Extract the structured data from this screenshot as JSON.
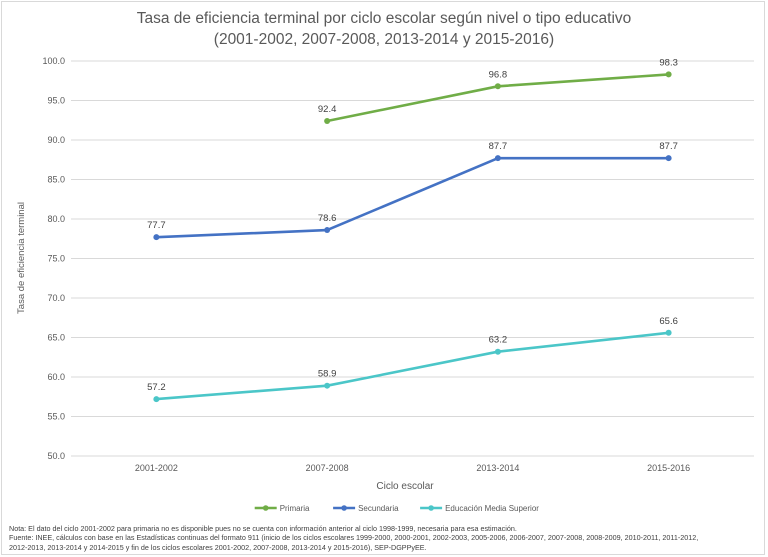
{
  "chart_data": {
    "type": "line",
    "title_line1": "Tasa de eficiencia terminal por ciclo escolar según nivel o tipo educativo",
    "title_line2": "(2001-2002, 2007-2008, 2013-2014 y 2015-2016)",
    "xlabel": "Ciclo escolar",
    "ylabel": "Tasa de eficiencia terminal",
    "categories": [
      "2001-2002",
      "2007-2008",
      "2013-2014",
      "2015-2016"
    ],
    "ylim": [
      50.0,
      100.0
    ],
    "yticks": [
      "50.0",
      "55.0",
      "60.0",
      "65.0",
      "70.0",
      "75.0",
      "80.0",
      "85.0",
      "90.0",
      "95.0",
      "100.0"
    ],
    "grid": true,
    "legend_position": "bottom",
    "series": [
      {
        "name": "Primaria",
        "color": "#70ad47",
        "values": [
          null,
          92.4,
          96.8,
          98.3
        ],
        "labels": [
          "",
          "92.4",
          "96.8",
          "98.3"
        ]
      },
      {
        "name": "Secundaria",
        "color": "#4472c4",
        "values": [
          77.7,
          78.6,
          87.7,
          87.7
        ],
        "labels": [
          "77.7",
          "78.6",
          "87.7",
          "87.7"
        ]
      },
      {
        "name": "Educación Media Superior",
        "color": "#4bc6c8",
        "values": [
          57.2,
          58.9,
          63.2,
          65.6
        ],
        "labels": [
          "57.2",
          "58.9",
          "63.2",
          "65.6"
        ]
      }
    ]
  },
  "notes": {
    "line1": "Nota: El dato del ciclo 2001-2002 para primaria no es disponible pues no se cuenta con información anterior al ciclo 1998-1999, necesaria para esa estimación.",
    "line2": "Fuente: INEE, cálculos con base en las Estadísticas continuas del formato 911 (inicio de los ciclos escolares 1999-2000, 2000-2001, 2002-2003, 2005-2006, 2006-2007, 2007-2008, 2008-2009, 2010-2011, 2011-2012,",
    "line3": "2012-2013, 2013-2014 y 2014-2015 y fin de los ciclos escolares 2001-2002, 2007-2008, 2013-2014 y 2015-2016), SEP-DGPPyEE."
  }
}
